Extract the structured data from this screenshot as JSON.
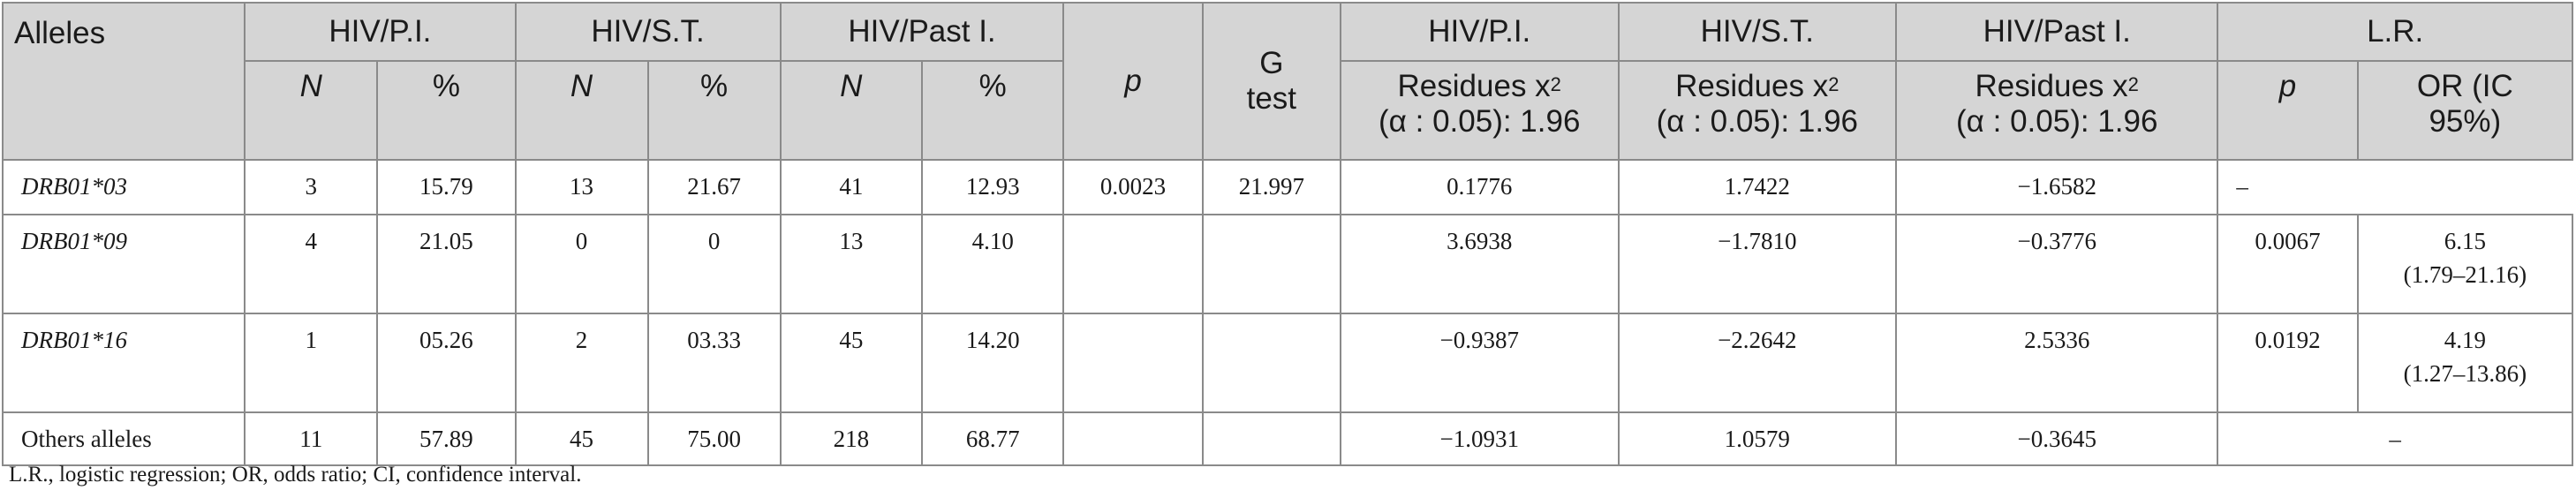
{
  "header": {
    "alleles": "Alleles",
    "groups": [
      "HIV/P.I.",
      "HIV/S.T.",
      "HIV/Past I."
    ],
    "sub_n": "N",
    "sub_pct": "%",
    "p": "p",
    "g_test": "G test",
    "residues_groups": [
      "HIV/P.I.",
      "HIV/S.T.",
      "HIV/Past I."
    ],
    "residues_label": "Residues x",
    "residues_sup": "2",
    "residues_alpha": "(α : 0.05): 1.96",
    "lr": "L.R.",
    "lr_p": "p",
    "lr_or": "OR (IC 95%)"
  },
  "rows": [
    {
      "allele": "DRB01*03",
      "pi_n": "3",
      "pi_pct": "15.79",
      "st_n": "13",
      "st_pct": "21.67",
      "past_n": "41",
      "past_pct": "12.93",
      "p": "0.0023",
      "g": "21.997",
      "res_pi": "0.1776",
      "res_st": "1.7422",
      "res_past": "−1.6582",
      "lr_p": "–",
      "lr_or": "",
      "lr_or_ci": ""
    },
    {
      "allele": "DRB01*09",
      "pi_n": "4",
      "pi_pct": "21.05",
      "st_n": "0",
      "st_pct": "0",
      "past_n": "13",
      "past_pct": "4.10",
      "p": "",
      "g": "",
      "res_pi": "3.6938",
      "res_st": "−1.7810",
      "res_past": "−0.3776",
      "lr_p": "0.0067",
      "lr_or": "6.15",
      "lr_or_ci": "(1.79–21.16)"
    },
    {
      "allele": "DRB01*16",
      "pi_n": "1",
      "pi_pct": "05.26",
      "st_n": "2",
      "st_pct": "03.33",
      "past_n": "45",
      "past_pct": "14.20",
      "p": "",
      "g": "",
      "res_pi": "−0.9387",
      "res_st": "−2.2642",
      "res_past": "2.5336",
      "lr_p": "0.0192",
      "lr_or": "4.19",
      "lr_or_ci": "(1.27–13.86)"
    },
    {
      "allele": "Others alleles",
      "pi_n": "11",
      "pi_pct": "57.89",
      "st_n": "45",
      "st_pct": "75.00",
      "past_n": "218",
      "past_pct": "68.77",
      "p": "",
      "g": "",
      "res_pi": "−1.0931",
      "res_st": "1.0579",
      "res_past": "−0.3645",
      "lr_merged": "–"
    }
  ],
  "footnote": "L.R., logistic regression; OR, odds ratio; CI, confidence interval."
}
